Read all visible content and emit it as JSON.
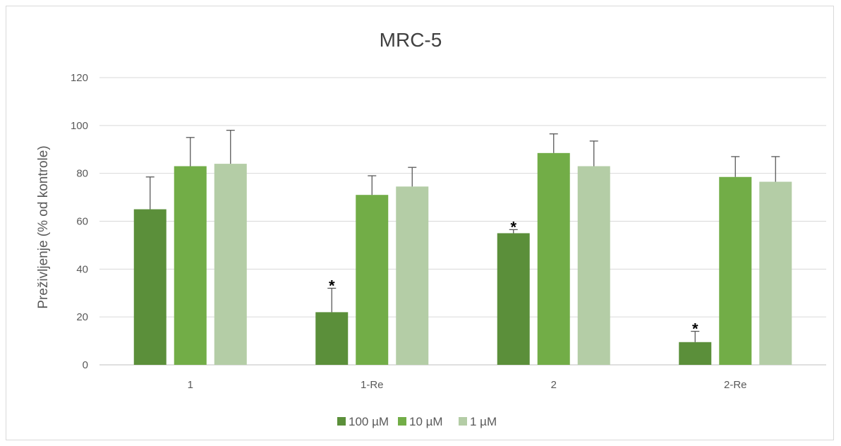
{
  "chart_data": {
    "type": "bar",
    "title": "MRC-5",
    "ylabel": "Preživljenje (% od kontrole)",
    "xlabel": "",
    "categories": [
      "1",
      "1-Re",
      "2",
      "2-Re"
    ],
    "ylim": [
      0,
      120
    ],
    "yticks": [
      "0",
      "20",
      "40",
      "60",
      "80",
      "100",
      "120"
    ],
    "grid": true,
    "legend_position": "bottom",
    "significance_marker": "*",
    "series": [
      {
        "name": "100 µM",
        "color": "#5b8f3a",
        "values": [
          65,
          22,
          55,
          9.5
        ],
        "errors": [
          13.5,
          10,
          1.5,
          4.5
        ],
        "significant": [
          false,
          true,
          true,
          true
        ]
      },
      {
        "name": "10 µM",
        "color": "#72ad47",
        "values": [
          83,
          71,
          88.5,
          78.5
        ],
        "errors": [
          12,
          8,
          8,
          8.5
        ],
        "significant": [
          false,
          false,
          false,
          false
        ]
      },
      {
        "name": "1 µM",
        "color": "#b4cda6",
        "values": [
          84,
          74.5,
          83,
          76.5
        ],
        "errors": [
          14,
          8,
          10.5,
          10.5
        ],
        "significant": [
          false,
          false,
          false,
          false
        ]
      }
    ]
  }
}
